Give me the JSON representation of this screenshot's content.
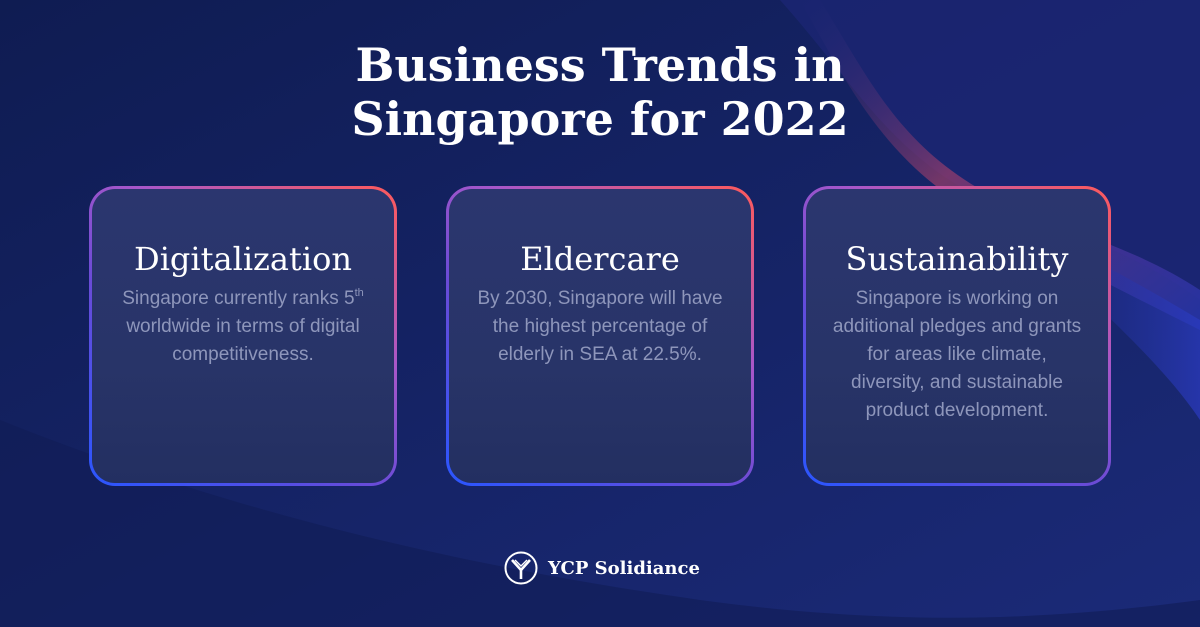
{
  "title": {
    "line1": "Business Trends in",
    "line2": "Singapore for 2022"
  },
  "cards": [
    {
      "title": "Digitalization",
      "body_before": "Singapore currently ranks 5",
      "body_sup": "th",
      "body_after": " worldwide in terms of digital competitiveness."
    },
    {
      "title": "Eldercare",
      "body": "By 2030, Singapore will have the highest percentage of elderly in SEA at 22.5%."
    },
    {
      "title": "Sustainability",
      "body": "Singapore is working on additional pledges and grants for areas like climate, diversity, and sustainable product development."
    }
  ],
  "logo": {
    "text": "YCP Solidiance",
    "icon": "ycp-logo-icon"
  },
  "colors": {
    "background": "#14225e",
    "card_border_top": "#ff5a5a",
    "card_border_bottom": "#2a56ff",
    "body_text": "#8e96bb"
  }
}
